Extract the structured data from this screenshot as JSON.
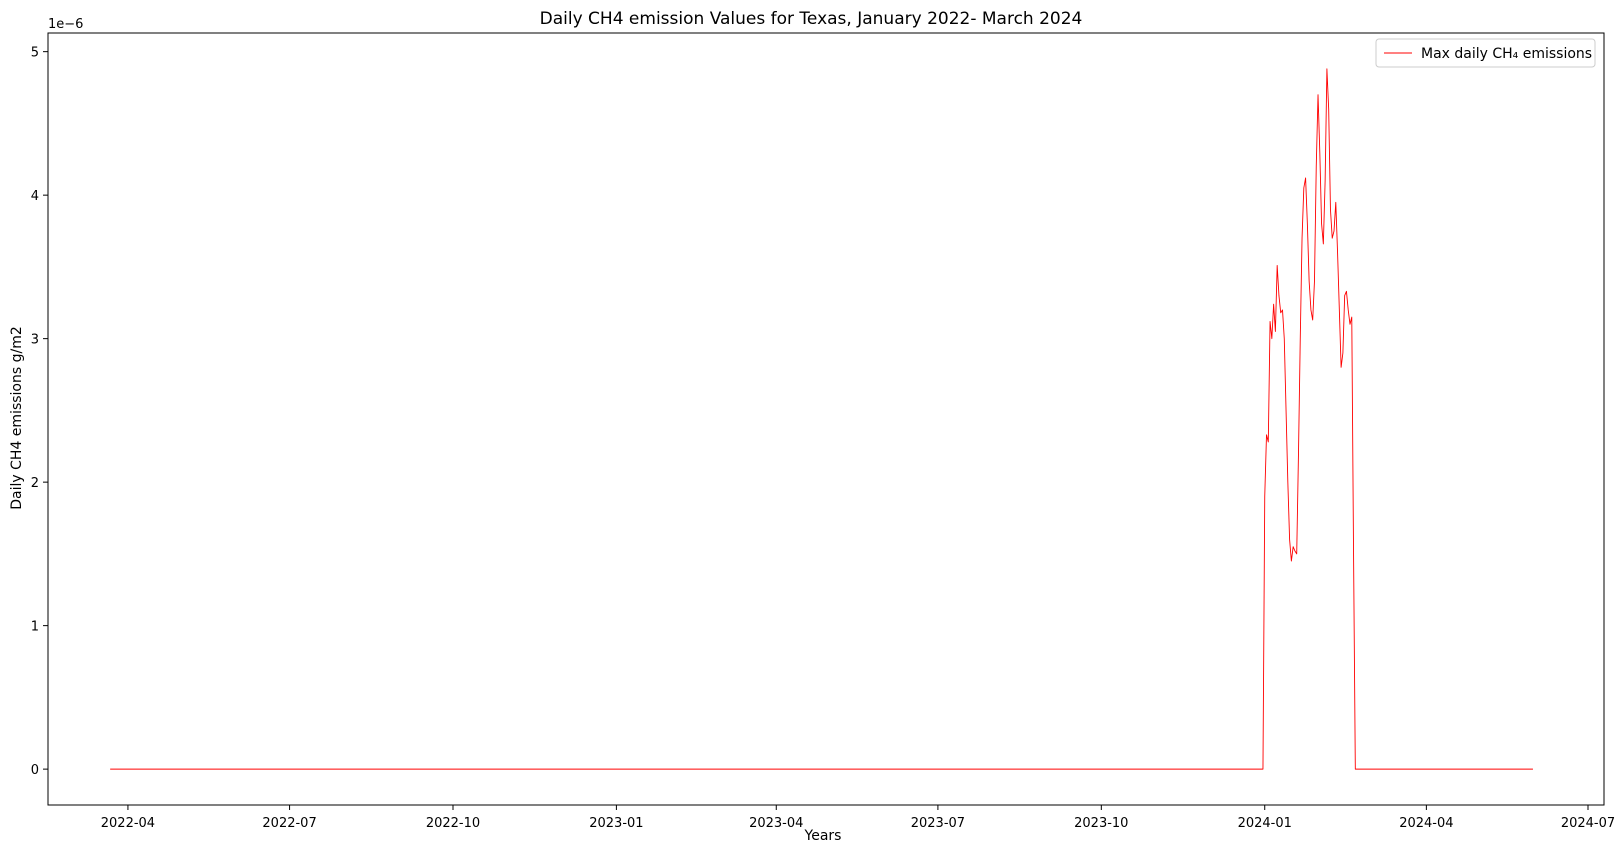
{
  "chart_data": {
    "type": "line",
    "title": "Daily CH4 emission Values for Texas, January 2022- March 2024",
    "xlabel": "Years",
    "ylabel": "Daily CH4 emissions g/m2",
    "y_offset_text": "1e−6",
    "xlim": [
      "2022-02-15",
      "2024-07-10"
    ],
    "ylim": [
      -0.25,
      5.13
    ],
    "x_ticks": [
      "2022-04",
      "2022-07",
      "2022-10",
      "2023-01",
      "2023-04",
      "2023-07",
      "2023-10",
      "2024-01",
      "2024-04",
      "2024-07"
    ],
    "y_ticks": [
      "0",
      "1",
      "2",
      "3",
      "4",
      "5"
    ],
    "y_tick_values": [
      0,
      1,
      2,
      3,
      4,
      5
    ],
    "legend_position": "top-right",
    "series": [
      {
        "name": "Max daily CH₄ emissions",
        "color": "#ff0000",
        "points": [
          [
            "2022-03-22",
            0
          ],
          [
            "2023-12-31",
            0
          ],
          [
            "2024-01-01",
            1.9
          ],
          [
            "2024-01-02",
            2.33
          ],
          [
            "2024-01-03",
            2.28
          ],
          [
            "2024-01-04",
            3.12
          ],
          [
            "2024-01-05",
            3.0
          ],
          [
            "2024-01-06",
            3.24
          ],
          [
            "2024-01-07",
            3.05
          ],
          [
            "2024-01-08",
            3.51
          ],
          [
            "2024-01-09",
            3.3
          ],
          [
            "2024-01-10",
            3.18
          ],
          [
            "2024-01-11",
            3.2
          ],
          [
            "2024-01-12",
            3.0
          ],
          [
            "2024-01-13",
            2.5
          ],
          [
            "2024-01-14",
            2.0
          ],
          [
            "2024-01-15",
            1.6
          ],
          [
            "2024-01-16",
            1.45
          ],
          [
            "2024-01-17",
            1.55
          ],
          [
            "2024-01-18",
            1.52
          ],
          [
            "2024-01-19",
            1.5
          ],
          [
            "2024-01-20",
            2.2
          ],
          [
            "2024-01-21",
            3.0
          ],
          [
            "2024-01-22",
            3.7
          ],
          [
            "2024-01-23",
            4.05
          ],
          [
            "2024-01-24",
            4.12
          ],
          [
            "2024-01-25",
            3.8
          ],
          [
            "2024-01-26",
            3.4
          ],
          [
            "2024-01-27",
            3.2
          ],
          [
            "2024-01-28",
            3.13
          ],
          [
            "2024-01-29",
            3.4
          ],
          [
            "2024-01-30",
            4.2
          ],
          [
            "2024-01-31",
            4.7
          ],
          [
            "2024-02-01",
            4.3
          ],
          [
            "2024-02-02",
            3.8
          ],
          [
            "2024-02-03",
            3.66
          ],
          [
            "2024-02-04",
            4.1
          ],
          [
            "2024-02-05",
            4.88
          ],
          [
            "2024-02-06",
            4.6
          ],
          [
            "2024-02-07",
            3.9
          ],
          [
            "2024-02-08",
            3.7
          ],
          [
            "2024-02-09",
            3.75
          ],
          [
            "2024-02-10",
            3.95
          ],
          [
            "2024-02-11",
            3.6
          ],
          [
            "2024-02-12",
            3.2
          ],
          [
            "2024-02-13",
            2.8
          ],
          [
            "2024-02-14",
            2.9
          ],
          [
            "2024-02-15",
            3.3
          ],
          [
            "2024-02-16",
            3.33
          ],
          [
            "2024-02-17",
            3.2
          ],
          [
            "2024-02-18",
            3.1
          ],
          [
            "2024-02-19",
            3.15
          ],
          [
            "2024-02-20",
            1.5
          ],
          [
            "2024-02-21",
            0
          ],
          [
            "2024-05-31",
            0
          ]
        ]
      }
    ]
  }
}
